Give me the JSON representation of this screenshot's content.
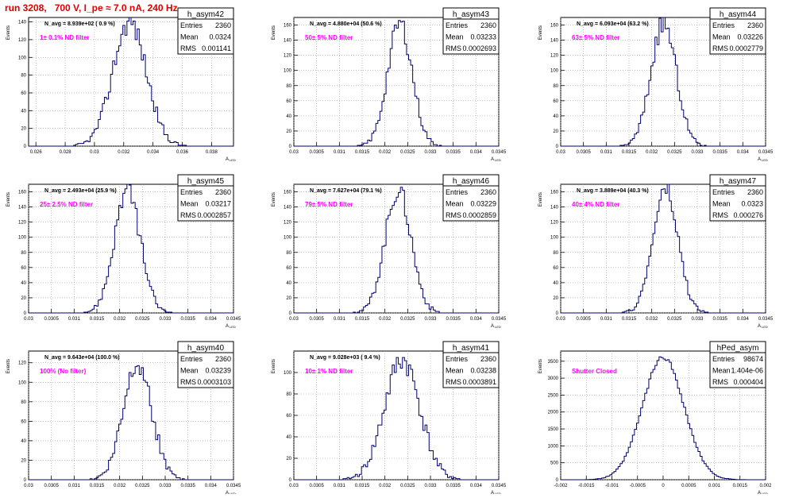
{
  "run_title": "run 3208,   700 V, I_pe ≈ 7.0 nA, 240 Hz",
  "colors": {
    "hist": "#00006e",
    "annotation": "#ff00ff",
    "title_red": "#e00000"
  },
  "stats_labels": {
    "entries": "Entries",
    "mean": "Mean",
    "rms": "RMS"
  },
  "ylabel": "Events",
  "xlabel": "A",
  "xlabel_sub": "LED",
  "chart_data": [
    {
      "type": "bar",
      "name": "h_asym42",
      "navg": "N_avg = 8.939e+02 ( 0.9 %)",
      "note": "1± 0.1% ND filter",
      "entries": "2360",
      "mean": "0.0324",
      "rms": "0.001141",
      "xlim": [
        0.0255,
        0.0395
      ],
      "xticks": [
        0.026,
        0.028,
        0.03,
        0.032,
        0.034,
        0.036,
        0.038
      ],
      "xticklabels": [
        "0.026",
        "0.028",
        "0.03",
        "0.032",
        "0.034",
        "0.036",
        "0.038"
      ],
      "ylim": [
        0,
        145
      ],
      "yticks": [
        0,
        20,
        40,
        60,
        80,
        100,
        120,
        140
      ],
      "center": 0.0324,
      "sigma": 0.001141,
      "peak": 140,
      "nbins": 100,
      "seed": 42
    },
    {
      "type": "bar",
      "name": "h_asym43",
      "navg": "N_avg = 4.880e+04 (50.6 %)",
      "note": "50± 5% ND filter",
      "entries": "2360",
      "mean": "0.03233",
      "rms": "0.0002693",
      "xlim": [
        0.03,
        0.0345
      ],
      "xticks": [
        0.03,
        0.0305,
        0.031,
        0.0315,
        0.032,
        0.0325,
        0.033,
        0.0335,
        0.034,
        0.0345
      ],
      "xticklabels": [
        "0.03",
        "0.0305",
        "0.031",
        "0.0315",
        "0.032",
        "0.0325",
        "0.033",
        "0.0335",
        "0.034",
        "0.0345"
      ],
      "ylim": [
        0,
        170
      ],
      "yticks": [
        0,
        20,
        40,
        60,
        80,
        100,
        120,
        140,
        160
      ],
      "center": 0.03233,
      "sigma": 0.0002693,
      "peak": 162,
      "nbins": 100,
      "seed": 43
    },
    {
      "type": "bar",
      "name": "h_asym44",
      "navg": "N_avg = 6.093e+04 (63.2 %)",
      "note": "63± 5% ND filter",
      "entries": "2360",
      "mean": "0.03226",
      "rms": "0.0002779",
      "xlim": [
        0.03,
        0.0345
      ],
      "xticks": [
        0.03,
        0.0305,
        0.031,
        0.0315,
        0.032,
        0.0325,
        0.033,
        0.0335,
        0.034,
        0.0345
      ],
      "xticklabels": [
        "0.03",
        "0.0305",
        "0.031",
        "0.0315",
        "0.032",
        "0.0325",
        "0.033",
        "0.0335",
        "0.034",
        "0.0345"
      ],
      "ylim": [
        0,
        170
      ],
      "yticks": [
        0,
        20,
        40,
        60,
        80,
        100,
        120,
        140,
        160
      ],
      "center": 0.03226,
      "sigma": 0.0002779,
      "peak": 162,
      "nbins": 100,
      "seed": 44
    },
    {
      "type": "bar",
      "name": "h_asym45",
      "navg": "N_avg = 2.493e+04 (25.9 %)",
      "note": "25± 2.5% ND filter",
      "entries": "2360",
      "mean": "0.03217",
      "rms": "0.0002857",
      "xlim": [
        0.03,
        0.0345
      ],
      "xticks": [
        0.03,
        0.0305,
        0.031,
        0.0315,
        0.032,
        0.0325,
        0.033,
        0.0335,
        0.034,
        0.0345
      ],
      "xticklabels": [
        "0.03",
        "0.0305",
        "0.031",
        "0.0315",
        "0.032",
        "0.0325",
        "0.033",
        "0.0335",
        "0.034",
        "0.0345"
      ],
      "ylim": [
        0,
        170
      ],
      "yticks": [
        0,
        20,
        40,
        60,
        80,
        100,
        120,
        140,
        160
      ],
      "center": 0.03217,
      "sigma": 0.0002857,
      "peak": 162,
      "nbins": 100,
      "seed": 45
    },
    {
      "type": "bar",
      "name": "h_asym46",
      "navg": "N_avg = 7.627e+04 (79.1 %)",
      "note": "79± 5% ND filter",
      "entries": "2360",
      "mean": "0.03229",
      "rms": "0.0002859",
      "xlim": [
        0.03,
        0.0345
      ],
      "xticks": [
        0.03,
        0.0305,
        0.031,
        0.0315,
        0.032,
        0.0325,
        0.033,
        0.0335,
        0.034,
        0.0345
      ],
      "xticklabels": [
        "0.03",
        "0.0305",
        "0.031",
        "0.0315",
        "0.032",
        "0.0325",
        "0.033",
        "0.0335",
        "0.034",
        "0.0345"
      ],
      "ylim": [
        0,
        170
      ],
      "yticks": [
        0,
        20,
        40,
        60,
        80,
        100,
        120,
        140,
        160
      ],
      "center": 0.03229,
      "sigma": 0.0002859,
      "peak": 162,
      "nbins": 100,
      "seed": 46
    },
    {
      "type": "bar",
      "name": "h_asym47",
      "navg": "N_avg = 3.889e+04 (40.3 %)",
      "note": "40± 4% ND filter",
      "entries": "2360",
      "mean": "0.0323",
      "rms": "0.000276",
      "xlim": [
        0.03,
        0.0345
      ],
      "xticks": [
        0.03,
        0.0305,
        0.031,
        0.0315,
        0.032,
        0.0325,
        0.033,
        0.0335,
        0.034,
        0.0345
      ],
      "xticklabels": [
        "0.03",
        "0.0305",
        "0.031",
        "0.0315",
        "0.032",
        "0.0325",
        "0.033",
        "0.0335",
        "0.034",
        "0.0345"
      ],
      "ylim": [
        0,
        170
      ],
      "yticks": [
        0,
        20,
        40,
        60,
        80,
        100,
        120,
        140,
        160
      ],
      "center": 0.0323,
      "sigma": 0.000276,
      "peak": 162,
      "nbins": 100,
      "seed": 47
    },
    {
      "type": "bar",
      "name": "h_asym40",
      "navg": "N_avg = 9.643e+04 (100.0 %)",
      "note": "100% (No filter)",
      "entries": "2360",
      "mean": "0.03239",
      "rms": "0.0003103",
      "xlim": [
        0.03,
        0.0345
      ],
      "xticks": [
        0.03,
        0.0305,
        0.031,
        0.0315,
        0.032,
        0.0325,
        0.033,
        0.0335,
        0.034,
        0.0345
      ],
      "xticklabels": [
        "0.03",
        "0.0305",
        "0.031",
        "0.0315",
        "0.032",
        "0.0325",
        "0.033",
        "0.0335",
        "0.034",
        "0.0345"
      ],
      "ylim": [
        0,
        132
      ],
      "yticks": [
        0,
        20,
        40,
        60,
        80,
        100,
        120
      ],
      "center": 0.03239,
      "sigma": 0.0003103,
      "peak": 122,
      "nbins": 100,
      "seed": 40
    },
    {
      "type": "bar",
      "name": "h_asym41",
      "navg": "N_avg = 9.028e+03 ( 9.4 %)",
      "note": "10± 1% ND filter",
      "entries": "2360",
      "mean": "0.03238",
      "rms": "0.0003891",
      "xlim": [
        0.03,
        0.0345
      ],
      "xticks": [
        0.03,
        0.0305,
        0.031,
        0.0315,
        0.032,
        0.0325,
        0.033,
        0.0335,
        0.034,
        0.0345
      ],
      "xticklabels": [
        "0.03",
        "0.0305",
        "0.031",
        "0.0315",
        "0.032",
        "0.0325",
        "0.033",
        "0.0335",
        "0.034",
        "0.0345"
      ],
      "ylim": [
        0,
        120
      ],
      "yticks": [
        0,
        20,
        40,
        60,
        80,
        100
      ],
      "center": 0.03238,
      "sigma": 0.0003891,
      "peak": 112,
      "nbins": 100,
      "seed": 41
    },
    {
      "type": "bar",
      "name": "hPed_asym",
      "navg": "",
      "note": "Shutter Closed",
      "entries": "98674",
      "mean": "1.404e-06",
      "rms": "0.000404",
      "xlim": [
        -0.002,
        0.002
      ],
      "xticks": [
        -0.002,
        -0.0015,
        -0.001,
        -0.0005,
        0,
        0.0005,
        0.001,
        0.0015,
        0.002
      ],
      "xticklabels": [
        "-0.002",
        "-0.0015",
        "-0.001",
        "-0.0005",
        "0",
        "0.0005",
        "0.001",
        "0.0015",
        "0.002"
      ],
      "ylim": [
        0,
        3800
      ],
      "yticks": [
        0,
        500,
        1000,
        1500,
        2000,
        2500,
        3000,
        3500
      ],
      "center": 1.4e-06,
      "sigma": 0.000404,
      "peak": 3620,
      "nbins": 100,
      "seed": 99
    }
  ]
}
